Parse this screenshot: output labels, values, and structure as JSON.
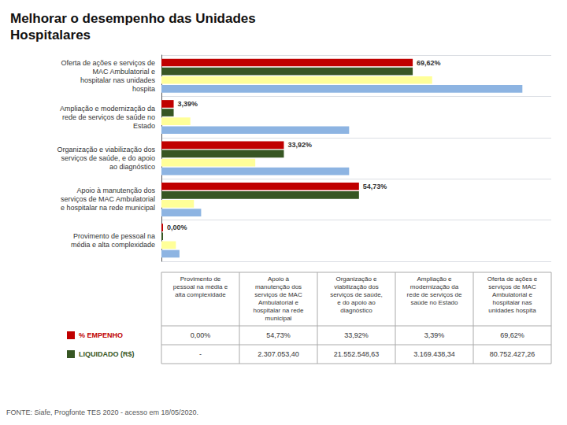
{
  "chart_data": {
    "type": "bar",
    "orientation": "horizontal",
    "title": "Melhorar o desempenho das Unidades\nHospitalares",
    "categories": [
      "Oferta de ações e serviços de\nMAC Ambulatorial e\nhospitalar nas unidades\nhospita",
      "Ampliação e modernização da\nrede de serviços de saúde no\nEstado",
      "Organização e viabilização dos\nserviços de saúde, e do apoio\nao diagnóstico",
      "Apoio à manutenção dos\nserviços de MAC Ambulatorial\ne hospitalar na rede municipal",
      "Provimento de pessoal na\nmédia e alta complexidade"
    ],
    "series": [
      {
        "color": "#c00000",
        "values": [
          69.62,
          3.39,
          33.92,
          54.73,
          0.0
        ],
        "value_labels": [
          "69,62%",
          "3,39%",
          "33,92%",
          "54,73%",
          "0,00%"
        ],
        "data_labels": true
      },
      {
        "color": "#375623",
        "values": [
          69.62,
          3.39,
          33.92,
          54.73,
          0.0
        ]
      },
      {
        "color": "#ffff99",
        "values": [
          75,
          8,
          26,
          9,
          4
        ]
      },
      {
        "color": "#8db4e2",
        "values": [
          100,
          52,
          52,
          11,
          5
        ]
      }
    ],
    "xlim": [
      0,
      108
    ],
    "tick_labels": "y",
    "grid": true,
    "table": {
      "columns": [
        "Provimento de\npessoal na média e\nalta complexidade",
        "Apoio à\nmanutenção dos\nserviços de MAC\nAmbulatorial e\nhospitalar na rede\nmunicipal",
        "Organização e\nviabilização dos\nserviços de saúde,\ne do apoio ao\ndiagnóstico",
        "Ampliação e\nmodernização da\nrede de serviços de\nsaúde no Estado",
        "Oferta de ações e\nserviços de MAC\nAmbulatorial e\nhospitalar nas\nunidades hospita"
      ],
      "rows": [
        {
          "label": "% EMPENHO",
          "color": "#c00000",
          "values": [
            "0,00%",
            "54,73%",
            "33,92%",
            "3,39%",
            "69,62%"
          ]
        },
        {
          "label": "LIQUIDADO (R$)",
          "color": "#375623",
          "values": [
            "-",
            "2.307.053,40",
            "21.552.548,63",
            "3.169.438,34",
            "80.752.427,26"
          ]
        }
      ]
    },
    "annotations": [
      "FONTE: Siafe, Progfonte TES 2020 - acesso em 18/05/2020."
    ]
  }
}
